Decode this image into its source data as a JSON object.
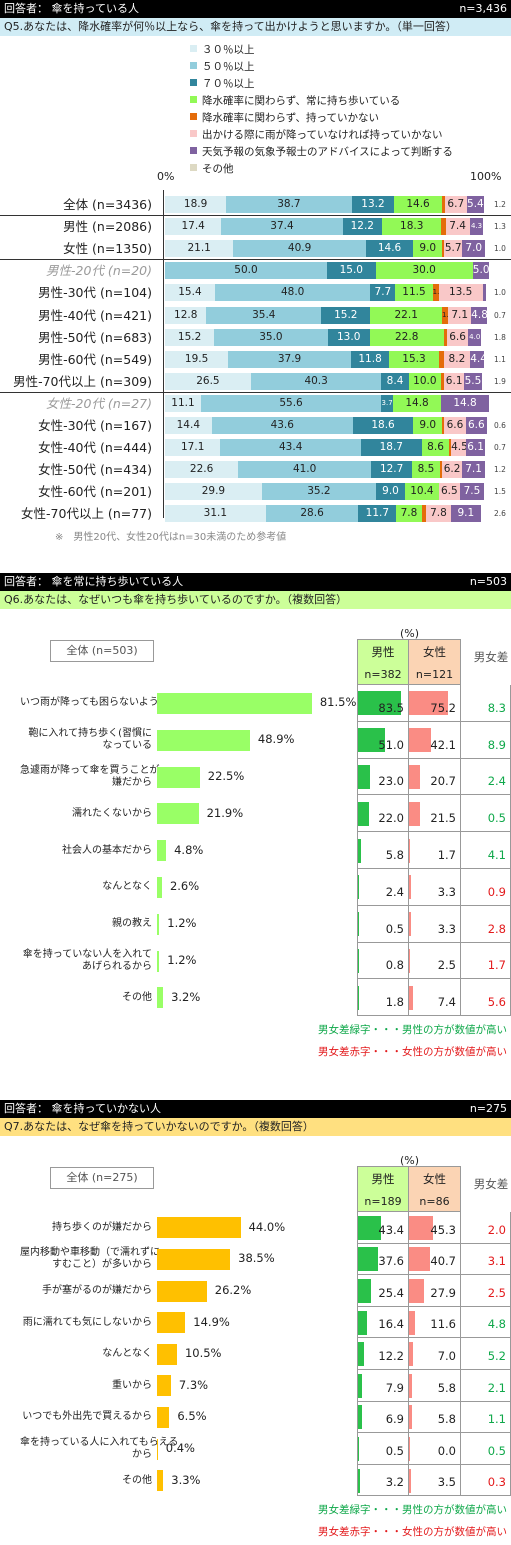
{
  "colors": {
    "s1": "#daeef3",
    "s2": "#92cddc",
    "s3": "#31859c",
    "s4": "#92f956",
    "s5": "#e46c0a",
    "s6": "#f9c8c8",
    "s7": "#7f62a0",
    "s8": "#ddd9c3",
    "green": "#0fa84a",
    "red": "#e31a1c",
    "orange": "#ffc000",
    "lime": "#99ff66"
  },
  "sec1": {
    "header_left": "回答者： 傘を持っている人",
    "header_right": "n=3,436",
    "question": "Q5.あなたは、降水確率が何％以上なら、傘を持って出かけようと思いますか。（単一回答）",
    "legend": [
      "３０％以上",
      "５０％以上",
      "７０％以上",
      "降水確率に関わらず、常に持ち歩いている",
      "降水確率に関わらず、持っていかない",
      "出かける際に雨が降っていなければ持っていかない",
      "天気予報の気象予報士のアドバイスによって判断する",
      "その他"
    ],
    "axis_min": "0%",
    "axis_max": "100%",
    "note": "※　男性20代、女性20代はn=30未満のため参考値"
  },
  "chart_data": [
    {
      "type": "bar",
      "stacked": true,
      "orientation": "horizontal",
      "title": "Q5.あなたは、降水確率が何％以上なら、傘を持って出かけようと思いますか。（単一回答）",
      "series_names": [
        "３０％以上",
        "５０％以上",
        "７０％以上",
        "降水確率に関わらず、常に持ち歩いている",
        "降水確率に関わらず、持っていかない",
        "出かける際に雨が降っていなければ持っていかない",
        "天気予報の気象予報士のアドバイスによって判断する",
        "その他"
      ],
      "rows": [
        {
          "label": "全体 (n=3436)",
          "values": [
            18.9,
            38.7,
            13.2,
            14.6,
            1.0,
            6.7,
            5.4,
            1.2
          ],
          "labels": [
            "18.9",
            "38.7",
            "13.2",
            "14.6",
            "1.0",
            "6.7",
            "5.4",
            "1.2"
          ]
        },
        {
          "label": "男性 (n=2086)",
          "values": [
            17.4,
            37.4,
            12.2,
            18.3,
            1.3,
            7.4,
            4.3,
            1.3
          ],
          "labels": [
            "17.4",
            "37.4",
            "12.2",
            "18.3",
            "1.3",
            "7.4",
            "4.3",
            "1.3"
          ]
        },
        {
          "label": "女性 (n=1350)",
          "values": [
            21.1,
            40.9,
            14.6,
            9.0,
            0.5,
            5.7,
            7.0,
            1.0
          ],
          "labels": [
            "21.1",
            "40.9",
            "14.6",
            "9.0",
            "0.5",
            "5.7",
            "7.0",
            "1.0"
          ]
        },
        {
          "label": "男性-20代 (n=20)",
          "values": [
            0,
            50.0,
            15.0,
            30.0,
            0,
            0,
            5.0,
            0
          ],
          "labels": [
            "",
            "50.0",
            "15.0",
            "30.0",
            "",
            "",
            "5.0",
            ""
          ],
          "ref": true
        },
        {
          "label": "男性-30代 (n=104)",
          "values": [
            15.4,
            48.0,
            7.7,
            11.5,
            1.9,
            13.5,
            1.0,
            1.0
          ],
          "labels": [
            "15.4",
            "48.0",
            "7.7",
            "11.5",
            "1.9",
            "13.5",
            "1.0",
            "1.0"
          ]
        },
        {
          "label": "男性-40代 (n=421)",
          "values": [
            12.8,
            35.4,
            15.2,
            22.1,
            1.9,
            7.1,
            4.8,
            0.7
          ],
          "labels": [
            "12.8",
            "35.4",
            "15.2",
            "22.1",
            "1.9",
            "7.1",
            "4.8",
            "0.7"
          ]
        },
        {
          "label": "男性-50代 (n=683)",
          "values": [
            15.2,
            35.0,
            13.0,
            22.8,
            1.0,
            6.6,
            4.0,
            1.8
          ],
          "labels": [
            "15.2",
            "35.0",
            "13.0",
            "22.8",
            "1.0",
            "6.6",
            "4.0",
            "1.8"
          ]
        },
        {
          "label": "男性-60代 (n=549)",
          "values": [
            19.5,
            37.9,
            11.8,
            15.3,
            1.5,
            8.2,
            4.4,
            1.1
          ],
          "labels": [
            "19.5",
            "37.9",
            "11.8",
            "15.3",
            "1.5",
            "8.2",
            "4.4",
            "1.1"
          ]
        },
        {
          "label": "男性-70代以上 (n=309)",
          "values": [
            26.5,
            40.3,
            8.4,
            10.0,
            1.0,
            6.1,
            5.5,
            1.9
          ],
          "labels": [
            "26.5",
            "40.3",
            "8.4",
            "10.0",
            "1.0",
            "6.1",
            "5.5",
            "1.9"
          ]
        },
        {
          "label": "女性-20代 (n=27)",
          "values": [
            11.1,
            55.6,
            3.7,
            14.8,
            0,
            0,
            14.8,
            0
          ],
          "labels": [
            "11.1",
            "55.6",
            "3.7",
            "14.8",
            "",
            "",
            "14.8",
            ""
          ],
          "ref": true
        },
        {
          "label": "女性-30代 (n=167)",
          "values": [
            14.4,
            43.6,
            18.6,
            9.0,
            0.6,
            6.6,
            6.6,
            0.6
          ],
          "labels": [
            "14.4",
            "43.6",
            "18.6",
            "9.0",
            "0.6",
            "6.6",
            "6.6",
            "0.6"
          ]
        },
        {
          "label": "女性-40代 (n=444)",
          "values": [
            17.1,
            43.4,
            18.7,
            8.6,
            0.5,
            4.5,
            6.1,
            0.7
          ],
          "labels": [
            "17.1",
            "43.4",
            "18.7",
            "8.6",
            "0.5",
            "4.5",
            "6.1",
            "0.7"
          ]
        },
        {
          "label": "女性-50代 (n=434)",
          "values": [
            22.6,
            41.0,
            12.7,
            8.5,
            0.7,
            6.2,
            7.1,
            1.2
          ],
          "labels": [
            "22.6",
            "41.0",
            "12.7",
            "8.5",
            "0.7",
            "6.2",
            "7.1",
            "1.2"
          ]
        },
        {
          "label": "女性-60代 (n=201)",
          "values": [
            29.9,
            35.2,
            9.0,
            10.4,
            0,
            6.5,
            7.5,
            1.5
          ],
          "labels": [
            "29.9",
            "35.2",
            "9.0",
            "10.4",
            "",
            "6.5",
            "7.5",
            "1.5"
          ]
        },
        {
          "label": "女性-70代以上 (n=77)",
          "values": [
            31.1,
            28.6,
            11.7,
            7.8,
            1.3,
            7.8,
            9.1,
            2.6
          ],
          "labels": [
            "31.1",
            "28.6",
            "11.7",
            "7.8",
            "1.3",
            "7.8",
            "9.1",
            "2.6"
          ]
        }
      ]
    },
    {
      "type": "bar",
      "orientation": "horizontal",
      "title": "Q6.あなたは、なぜいつも傘を持ち歩いているのですか。（複数回答）",
      "total_label": "全体 (n=503)",
      "items": [
        {
          "label": "いつ雨が降っても困らないように",
          "total": 81.5,
          "male": 83.5,
          "female": 75.2,
          "diff": 8.3,
          "diff_color": "green"
        },
        {
          "label": "鞄に入れて持ち歩く(習慣に\nなっている",
          "total": 48.9,
          "male": 51.0,
          "female": 42.1,
          "diff": 8.9,
          "diff_color": "green"
        },
        {
          "label": "急遽雨が降って傘を買うことが\n嫌だから",
          "total": 22.5,
          "male": 23.0,
          "female": 20.7,
          "diff": 2.4,
          "diff_color": "green"
        },
        {
          "label": "濡れたくないから",
          "total": 21.9,
          "male": 22.0,
          "female": 21.5,
          "diff": 0.5,
          "diff_color": "green"
        },
        {
          "label": "社会人の基本だから",
          "total": 4.8,
          "male": 5.8,
          "female": 1.7,
          "diff": 4.1,
          "diff_color": "green"
        },
        {
          "label": "なんとなく",
          "total": 2.6,
          "male": 2.4,
          "female": 3.3,
          "diff": 0.9,
          "diff_color": "red"
        },
        {
          "label": "親の教え",
          "total": 1.2,
          "male": 0.5,
          "female": 3.3,
          "diff": 2.8,
          "diff_color": "red"
        },
        {
          "label": "傘を持っていない人を入れて\nあげられるから",
          "total": 1.2,
          "male": 0.8,
          "female": 2.5,
          "diff": 1.7,
          "diff_color": "red"
        },
        {
          "label": "その他",
          "total": 3.2,
          "male": 1.8,
          "female": 7.4,
          "diff": 5.6,
          "diff_color": "red"
        }
      ]
    },
    {
      "type": "bar",
      "orientation": "horizontal",
      "title": "Q7.あなたは、なぜ傘を持っていかないのですか。（複数回答）",
      "total_label": "全体 (n=275)",
      "items": [
        {
          "label": "持ち歩くのが嫌だから",
          "total": 44.0,
          "male": 43.4,
          "female": 45.3,
          "diff": 2.0,
          "diff_color": "red"
        },
        {
          "label": "屋内移動や車移動（で濡れずに\nすむこと）が多いから",
          "total": 38.5,
          "male": 37.6,
          "female": 40.7,
          "diff": 3.1,
          "diff_color": "red"
        },
        {
          "label": "手が塞がるのが嫌だから",
          "total": 26.2,
          "male": 25.4,
          "female": 27.9,
          "diff": 2.5,
          "diff_color": "red"
        },
        {
          "label": "雨に濡れても気にしないから",
          "total": 14.9,
          "male": 16.4,
          "female": 11.6,
          "diff": 4.8,
          "diff_color": "green"
        },
        {
          "label": "なんとなく",
          "total": 10.5,
          "male": 12.2,
          "female": 7.0,
          "diff": 5.2,
          "diff_color": "green"
        },
        {
          "label": "重いから",
          "total": 7.3,
          "male": 7.9,
          "female": 5.8,
          "diff": 2.1,
          "diff_color": "green"
        },
        {
          "label": "いつでも外出先で買えるから",
          "total": 6.5,
          "male": 6.9,
          "female": 5.8,
          "diff": 1.1,
          "diff_color": "green"
        },
        {
          "label": "傘を持っている人に入れてもらえる\nから",
          "total": 0.4,
          "male": 0.5,
          "female": 0.0,
          "diff": 0.5,
          "diff_color": "green"
        },
        {
          "label": "その他",
          "total": 3.3,
          "male": 3.2,
          "female": 3.5,
          "diff": 0.3,
          "diff_color": "red"
        }
      ]
    }
  ],
  "sec2": {
    "header_left": "回答者： 傘を常に持ち歩いている人",
    "header_right": "n=503",
    "question": "Q6.あなたは、なぜいつも傘を持ち歩いているのですか。（複数回答）",
    "unit": "(%)",
    "male_head": "男性",
    "male_n": "n=382",
    "female_head": "女性",
    "female_n": "n=121",
    "diff_head": "男女差",
    "foot_green": "男女差緑字・・・男性の方が数値が高い",
    "foot_red": "男女差赤字・・・女性の方が数値が高い"
  },
  "sec3": {
    "header_left": "回答者： 傘を持っていかない人",
    "header_right": "n=275",
    "question": "Q7.あなたは、なぜ傘を持っていかないのですか。（複数回答）",
    "unit": "(%)",
    "male_head": "男性",
    "male_n": "n=189",
    "female_head": "女性",
    "female_n": "n=86",
    "diff_head": "男女差",
    "foot_green": "男女差緑字・・・男性の方が数値が高い",
    "foot_red": "男女差赤字・・・女性の方が数値が高い"
  }
}
